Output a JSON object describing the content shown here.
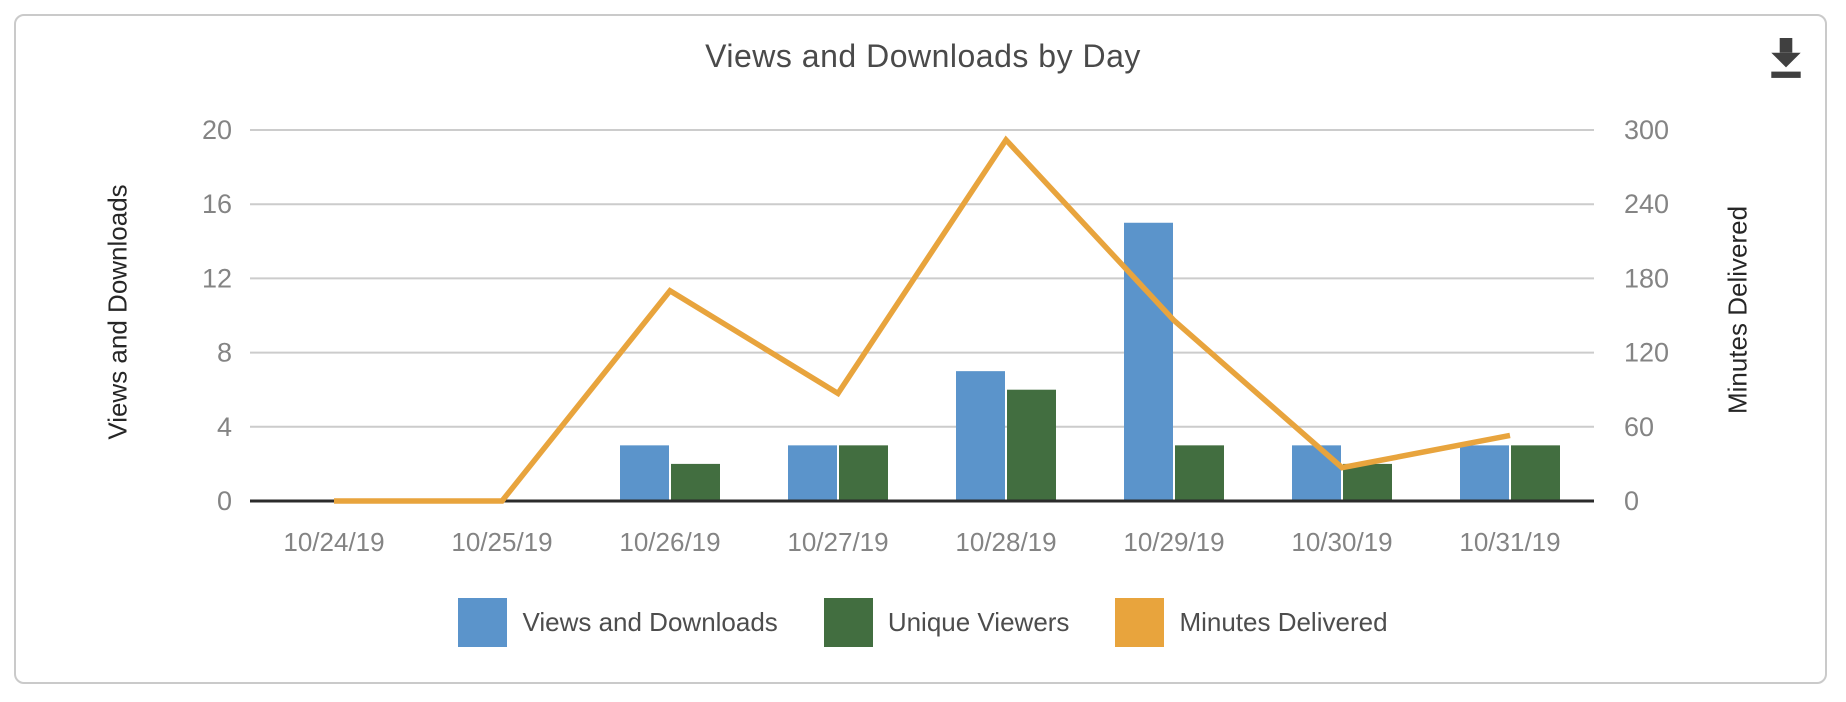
{
  "chart_data": {
    "type": "bar",
    "title": "Views and Downloads by Day",
    "categories": [
      "10/24/19",
      "10/25/19",
      "10/26/19",
      "10/27/19",
      "10/28/19",
      "10/29/19",
      "10/30/19",
      "10/31/19"
    ],
    "series": [
      {
        "name": "Views and Downloads",
        "type": "bar",
        "axis": "left",
        "color": "#5b94cb",
        "values": [
          0,
          0,
          3,
          3,
          7,
          15,
          3,
          3
        ]
      },
      {
        "name": "Unique Viewers",
        "type": "bar",
        "axis": "left",
        "color": "#426e40",
        "values": [
          0,
          0,
          2,
          3,
          6,
          3,
          2,
          3
        ]
      },
      {
        "name": "Minutes Delivered",
        "type": "line",
        "axis": "right",
        "color": "#e8a43d",
        "values": [
          0,
          0,
          170,
          87,
          292,
          146,
          27,
          53
        ]
      }
    ],
    "left_axis": {
      "label": "Views and Downloads",
      "range": [
        0,
        20
      ],
      "ticks": [
        0,
        4,
        8,
        12,
        16,
        20
      ]
    },
    "right_axis": {
      "label": "Minutes Delivered",
      "range": [
        0,
        300
      ],
      "ticks": [
        0,
        60,
        120,
        180,
        240,
        300
      ]
    },
    "x_axis": {
      "tick_labels": [
        "10/24/19",
        "10/25/19",
        "10/26/19",
        "10/27/19",
        "10/28/19",
        "10/29/19",
        "10/30/19",
        "10/31/19"
      ]
    },
    "grid": true,
    "legend_position": "bottom"
  },
  "toolbar": {
    "download_icon": "download-icon"
  },
  "colors": {
    "gridline": "#cccccc",
    "axis_line": "#2b2b2b",
    "tick_label": "#848484",
    "title_text": "#4a4a4a",
    "legend_text": "#4d4d4d",
    "icon": "#404040",
    "card_border": "#cacaca"
  }
}
